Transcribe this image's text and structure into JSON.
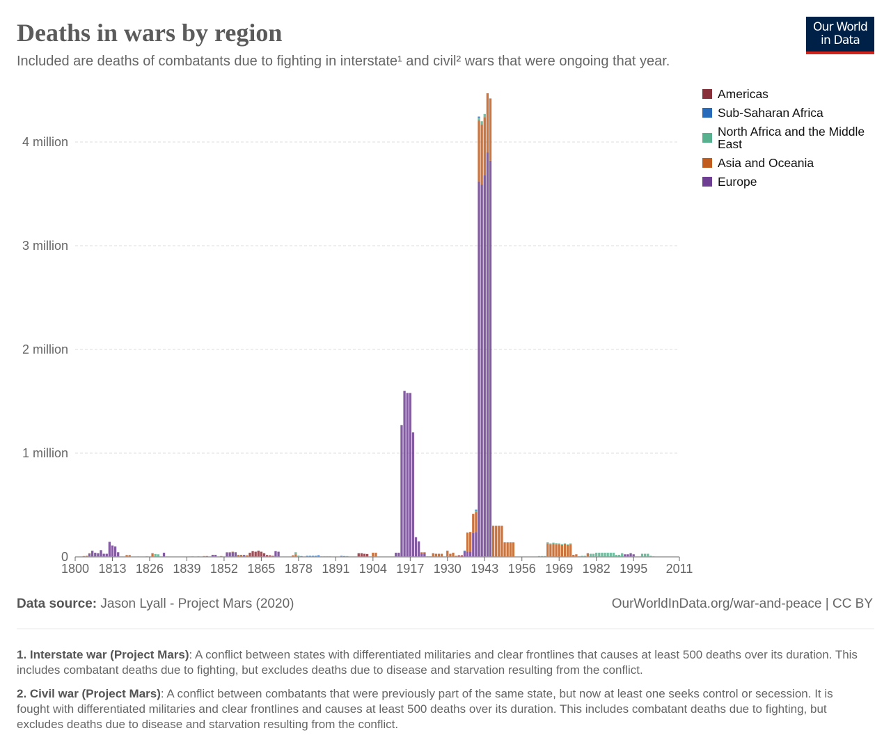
{
  "header": {
    "title": "Deaths in wars by region",
    "subtitle": "Included are deaths of combatants due to fighting in interstate¹ and civil² wars that were ongoing that year.",
    "logo_line1": "Our World",
    "logo_line2": "in Data"
  },
  "footer": {
    "source_label": "Data source:",
    "source_value": " Jason Lyall - Project Mars (2020)",
    "url": "OurWorldInData.org/war-and-peace | CC BY",
    "notes": [
      {
        "title": "1. Interstate war (Project Mars)",
        "text": ": A conflict between states with differentiated militaries and clear frontlines that causes at least 500 deaths over its duration. This includes combatant deaths due to fighting, but excludes deaths due to disease and starvation resulting from the conflict."
      },
      {
        "title": "2. Civil war (Project Mars)",
        "text": ": A conflict between combatants that were previously part of the same state, but now at least one seeks control or secession. It is fought with differentiated militaries and clear frontlines and causes at least 500 deaths over its duration. This includes combatant deaths due to fighting, but excludes deaths due to disease and starvation resulting from the conflict."
      }
    ]
  },
  "chart_data": {
    "type": "bar",
    "stacked": true,
    "title": "Deaths in wars by region",
    "xlabel": "",
    "ylabel": "",
    "xlim": [
      1800,
      2011
    ],
    "ylim": [
      0,
      4500000
    ],
    "x_ticks": [
      "1800",
      "1813",
      "1826",
      "1839",
      "1852",
      "1865",
      "1878",
      "1891",
      "1904",
      "1917",
      "1930",
      "1943",
      "1956",
      "1969",
      "1982",
      "1995",
      "2011"
    ],
    "y_ticks": [
      {
        "value": 0,
        "label": "0"
      },
      {
        "value": 1000000,
        "label": "1 million"
      },
      {
        "value": 2000000,
        "label": "2 million"
      },
      {
        "value": 3000000,
        "label": "3 million"
      },
      {
        "value": 4000000,
        "label": "4 million"
      }
    ],
    "grid": true,
    "legend_position": "right",
    "series_order_bottom_to_top": [
      "Europe",
      "Asia and Oceania",
      "North Africa and the Middle East",
      "Sub-Saharan Africa",
      "Americas"
    ],
    "series": [
      {
        "name": "Americas",
        "color": "#883039"
      },
      {
        "name": "Sub-Saharan Africa",
        "color": "#286bbb"
      },
      {
        "name": "North Africa and the Middle East",
        "color": "#57b18f"
      },
      {
        "name": "Asia and Oceania",
        "color": "#c15c1f"
      },
      {
        "name": "Europe",
        "color": "#6d3e91"
      }
    ],
    "points": [
      {
        "year": 1803,
        "Asia and Oceania": 8000
      },
      {
        "year": 1804,
        "Asia and Oceania": 10000
      },
      {
        "year": 1805,
        "Europe": 30000,
        "Asia and Oceania": 5000
      },
      {
        "year": 1806,
        "Europe": 55000,
        "Sub-Saharan Africa": 5000
      },
      {
        "year": 1807,
        "Europe": 40000
      },
      {
        "year": 1808,
        "Europe": 35000
      },
      {
        "year": 1809,
        "Europe": 65000
      },
      {
        "year": 1810,
        "Europe": 30000
      },
      {
        "year": 1811,
        "Europe": 30000
      },
      {
        "year": 1812,
        "Europe": 145000
      },
      {
        "year": 1813,
        "Europe": 110000
      },
      {
        "year": 1814,
        "Europe": 100000
      },
      {
        "year": 1815,
        "Europe": 45000
      },
      {
        "year": 1818,
        "Asia and Oceania": 18000
      },
      {
        "year": 1819,
        "Asia and Oceania": 18000
      },
      {
        "year": 1822,
        "Asia and Oceania": 4000
      },
      {
        "year": 1825,
        "Asia and Oceania": 5000
      },
      {
        "year": 1827,
        "Asia and Oceania": 35000
      },
      {
        "year": 1828,
        "North Africa and the Middle East": 28000
      },
      {
        "year": 1829,
        "North Africa and the Middle East": 25000
      },
      {
        "year": 1831,
        "Europe": 40000
      },
      {
        "year": 1840,
        "Asia and Oceania": 4000
      },
      {
        "year": 1841,
        "Asia and Oceania": 5000
      },
      {
        "year": 1843,
        "Asia and Oceania": 5000
      },
      {
        "year": 1845,
        "Asia and Oceania": 8000
      },
      {
        "year": 1846,
        "Americas": 8000
      },
      {
        "year": 1848,
        "Europe": 20000
      },
      {
        "year": 1849,
        "Europe": 20000
      },
      {
        "year": 1851,
        "Asia and Oceania": 8000
      },
      {
        "year": 1853,
        "Europe": 40000,
        "Asia and Oceania": 5000
      },
      {
        "year": 1854,
        "Europe": 40000,
        "Asia and Oceania": 5000
      },
      {
        "year": 1855,
        "Europe": 45000,
        "Asia and Oceania": 5000
      },
      {
        "year": 1856,
        "Europe": 45000
      },
      {
        "year": 1857,
        "Asia and Oceania": 20000
      },
      {
        "year": 1858,
        "Asia and Oceania": 20000
      },
      {
        "year": 1859,
        "Europe": 15000,
        "Asia and Oceania": 5000
      },
      {
        "year": 1860,
        "Asia and Oceania": 15000
      },
      {
        "year": 1861,
        "Americas": 40000
      },
      {
        "year": 1862,
        "Americas": 55000
      },
      {
        "year": 1863,
        "Americas": 50000
      },
      {
        "year": 1864,
        "Americas": 60000
      },
      {
        "year": 1865,
        "Americas": 50000
      },
      {
        "year": 1866,
        "Americas": 25000,
        "Europe": 10000
      },
      {
        "year": 1867,
        "Americas": 18000
      },
      {
        "year": 1868,
        "Americas": 15000
      },
      {
        "year": 1869,
        "Americas": 10000
      },
      {
        "year": 1870,
        "Europe": 55000
      },
      {
        "year": 1871,
        "Europe": 50000
      },
      {
        "year": 1876,
        "Asia and Oceania": 15000
      },
      {
        "year": 1877,
        "Asia and Oceania": 25000,
        "North Africa and the Middle East": 20000
      },
      {
        "year": 1878,
        "North Africa and the Middle East": 12000
      },
      {
        "year": 1879,
        "Sub-Saharan Africa": 8000
      },
      {
        "year": 1881,
        "Sub-Saharan Africa": 10000
      },
      {
        "year": 1882,
        "Sub-Saharan Africa": 10000
      },
      {
        "year": 1883,
        "Sub-Saharan Africa": 10000
      },
      {
        "year": 1884,
        "Sub-Saharan Africa": 10000
      },
      {
        "year": 1885,
        "Sub-Saharan Africa": 15000
      },
      {
        "year": 1886,
        "North Africa and the Middle East": 5000
      },
      {
        "year": 1887,
        "North Africa and the Middle East": 5000
      },
      {
        "year": 1888,
        "North Africa and the Middle East": 5000
      },
      {
        "year": 1889,
        "North Africa and the Middle East": 5000
      },
      {
        "year": 1893,
        "Sub-Saharan Africa": 10000
      },
      {
        "year": 1894,
        "Sub-Saharan Africa": 8000
      },
      {
        "year": 1895,
        "North Africa and the Middle East": 8000
      },
      {
        "year": 1899,
        "Americas": 35000
      },
      {
        "year": 1900,
        "Americas": 35000
      },
      {
        "year": 1901,
        "Americas": 30000
      },
      {
        "year": 1902,
        "Americas": 28000
      },
      {
        "year": 1904,
        "Asia and Oceania": 40000
      },
      {
        "year": 1905,
        "Asia and Oceania": 40000
      },
      {
        "year": 1912,
        "Europe": 40000
      },
      {
        "year": 1913,
        "Europe": 40000
      },
      {
        "year": 1914,
        "Europe": 1270000
      },
      {
        "year": 1915,
        "Europe": 1600000
      },
      {
        "year": 1916,
        "Europe": 1580000
      },
      {
        "year": 1917,
        "Europe": 1580000
      },
      {
        "year": 1918,
        "Europe": 1200000
      },
      {
        "year": 1919,
        "Europe": 190000
      },
      {
        "year": 1920,
        "Europe": 150000
      },
      {
        "year": 1921,
        "Europe": 35000,
        "Asia and Oceania": 10000
      },
      {
        "year": 1922,
        "Europe": 35000,
        "Asia and Oceania": 10000
      },
      {
        "year": 1923,
        "North Africa and the Middle East": 5000
      },
      {
        "year": 1924,
        "North Africa and the Middle East": 5000
      },
      {
        "year": 1925,
        "Asia and Oceania": 35000
      },
      {
        "year": 1926,
        "Asia and Oceania": 30000
      },
      {
        "year": 1927,
        "Asia and Oceania": 30000
      },
      {
        "year": 1928,
        "Asia and Oceania": 30000
      },
      {
        "year": 1930,
        "Asia and Oceania": 60000
      },
      {
        "year": 1931,
        "Asia and Oceania": 30000
      },
      {
        "year": 1932,
        "Asia and Oceania": 40000
      },
      {
        "year": 1933,
        "Asia and Oceania": 10000
      },
      {
        "year": 1934,
        "Americas": 15000
      },
      {
        "year": 1935,
        "Americas": 15000
      },
      {
        "year": 1936,
        "Europe": 50000,
        "Sub-Saharan Africa": 10000
      },
      {
        "year": 1937,
        "Europe": 50000,
        "Asia and Oceania": 185000
      },
      {
        "year": 1938,
        "Europe": 50000,
        "Asia and Oceania": 190000
      },
      {
        "year": 1939,
        "Europe": 230000,
        "Asia and Oceania": 185000
      },
      {
        "year": 1940,
        "Europe": 240000,
        "Asia and Oceania": 190000,
        "North Africa and the Middle East": 15000,
        "Sub-Saharan Africa": 10000
      },
      {
        "year": 1941,
        "Europe": 3620000,
        "Asia and Oceania": 590000,
        "North Africa and the Middle East": 25000,
        "Sub-Saharan Africa": 10000
      },
      {
        "year": 1942,
        "Europe": 3590000,
        "Asia and Oceania": 580000,
        "North Africa and the Middle East": 30000
      },
      {
        "year": 1943,
        "Europe": 3680000,
        "Asia and Oceania": 560000,
        "North Africa and the Middle East": 30000
      },
      {
        "year": 1944,
        "Europe": 3900000,
        "Asia and Oceania": 570000
      },
      {
        "year": 1945,
        "Europe": 3820000,
        "Asia and Oceania": 600000
      },
      {
        "year": 1946,
        "Asia and Oceania": 300000
      },
      {
        "year": 1947,
        "Asia and Oceania": 300000
      },
      {
        "year": 1948,
        "Asia and Oceania": 300000
      },
      {
        "year": 1949,
        "Asia and Oceania": 300000
      },
      {
        "year": 1950,
        "Asia and Oceania": 140000
      },
      {
        "year": 1951,
        "Asia and Oceania": 140000
      },
      {
        "year": 1952,
        "Asia and Oceania": 140000
      },
      {
        "year": 1953,
        "Asia and Oceania": 140000
      },
      {
        "year": 1962,
        "North Africa and the Middle East": 8000
      },
      {
        "year": 1963,
        "North Africa and the Middle East": 8000
      },
      {
        "year": 1964,
        "North Africa and the Middle East": 8000
      },
      {
        "year": 1965,
        "Asia and Oceania": 130000,
        "North Africa and the Middle East": 10000
      },
      {
        "year": 1966,
        "Asia and Oceania": 120000,
        "North Africa and the Middle East": 10000
      },
      {
        "year": 1967,
        "Asia and Oceania": 125000,
        "North Africa and the Middle East": 12000
      },
      {
        "year": 1968,
        "Asia and Oceania": 120000,
        "North Africa and the Middle East": 12000
      },
      {
        "year": 1969,
        "Asia and Oceania": 120000,
        "North Africa and the Middle East": 10000
      },
      {
        "year": 1970,
        "Asia and Oceania": 115000,
        "North Africa and the Middle East": 8000
      },
      {
        "year": 1971,
        "Asia and Oceania": 125000,
        "North Africa and the Middle East": 5000
      },
      {
        "year": 1972,
        "Asia and Oceania": 115000,
        "North Africa and the Middle East": 5000
      },
      {
        "year": 1973,
        "Asia and Oceania": 120000,
        "North Africa and the Middle East": 10000
      },
      {
        "year": 1974,
        "Asia and Oceania": 20000
      },
      {
        "year": 1975,
        "Asia and Oceania": 25000
      },
      {
        "year": 1976,
        "Asia and Oceania": 5000
      },
      {
        "year": 1977,
        "North Africa and the Middle East": 10000
      },
      {
        "year": 1978,
        "North Africa and the Middle East": 10000
      },
      {
        "year": 1979,
        "Asia and Oceania": 35000
      },
      {
        "year": 1980,
        "North Africa and the Middle East": 30000
      },
      {
        "year": 1981,
        "North Africa and the Middle East": 30000
      },
      {
        "year": 1982,
        "North Africa and the Middle East": 40000
      },
      {
        "year": 1983,
        "North Africa and the Middle East": 40000
      },
      {
        "year": 1984,
        "North Africa and the Middle East": 40000
      },
      {
        "year": 1985,
        "North Africa and the Middle East": 40000
      },
      {
        "year": 1986,
        "North Africa and the Middle East": 40000
      },
      {
        "year": 1987,
        "North Africa and the Middle East": 40000
      },
      {
        "year": 1988,
        "North Africa and the Middle East": 40000
      },
      {
        "year": 1989,
        "North Africa and the Middle East": 20000
      },
      {
        "year": 1990,
        "North Africa and the Middle East": 20000
      },
      {
        "year": 1991,
        "North Africa and the Middle East": 35000
      },
      {
        "year": 1992,
        "Europe": 25000
      },
      {
        "year": 1993,
        "Europe": 25000
      },
      {
        "year": 1994,
        "Europe": 35000
      },
      {
        "year": 1995,
        "Europe": 25000
      },
      {
        "year": 1998,
        "North Africa and the Middle East": 30000
      },
      {
        "year": 1999,
        "North Africa and the Middle East": 30000
      },
      {
        "year": 2000,
        "North Africa and the Middle East": 30000
      },
      {
        "year": 2001,
        "North Africa and the Middle East": 10000
      },
      {
        "year": 2002,
        "North Africa and the Middle East": 5000
      }
    ]
  }
}
